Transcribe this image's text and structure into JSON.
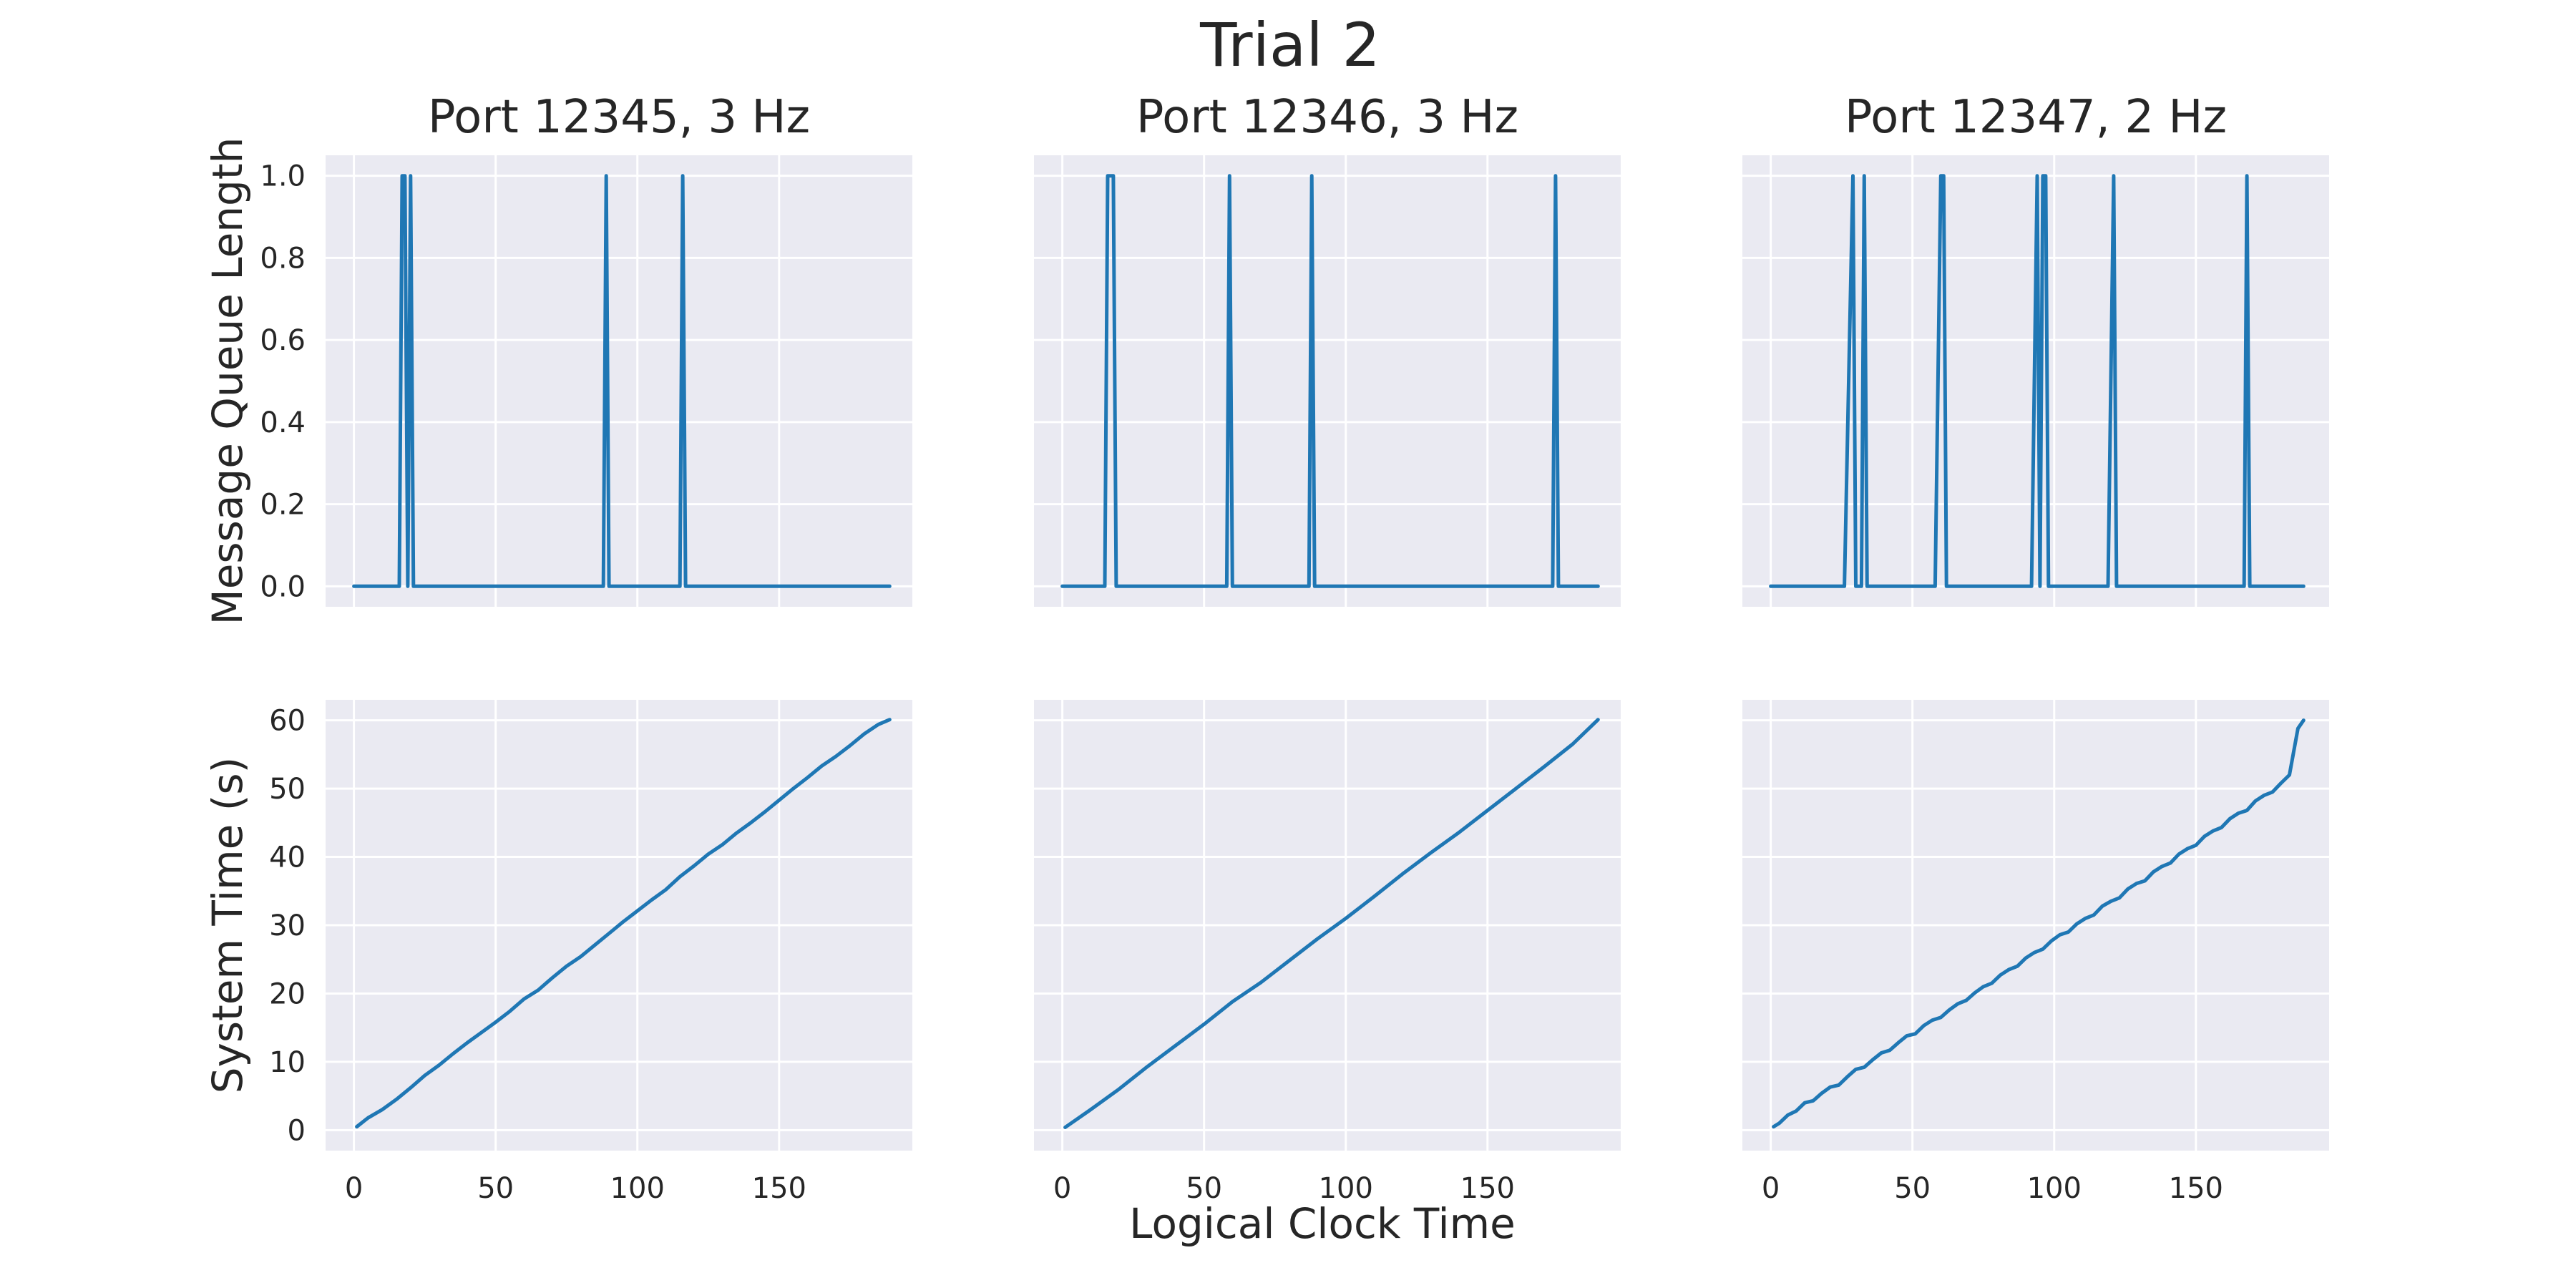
{
  "figure": {
    "title": "Trial 2",
    "shared_xlabel": "Logical Clock Time"
  },
  "chart_data": [
    {
      "type": "line",
      "title": "Port 12345, 3 Hz",
      "xlabel": "",
      "ylabel": "Message Queue Length",
      "xlim": [
        -10,
        197
      ],
      "ylim": [
        -0.05,
        1.05
      ],
      "xticks": [
        0,
        50,
        100,
        150
      ],
      "yticks": [
        0.0,
        0.2,
        0.4,
        0.6,
        0.8,
        1.0
      ],
      "ytick_labels": [
        "0.0",
        "0.2",
        "0.4",
        "0.6",
        "0.8",
        "1.0"
      ],
      "grid": true,
      "line_color": "#1f77b4",
      "series": [
        {
          "x": [
            0,
            16,
            17,
            18,
            19,
            20,
            21,
            88,
            89,
            90,
            115,
            116,
            117,
            189
          ],
          "y": [
            0,
            0,
            1,
            1,
            0,
            1,
            0,
            0,
            1,
            0,
            0,
            1,
            0,
            0
          ]
        }
      ]
    },
    {
      "type": "line",
      "title": "Port 12346, 3 Hz",
      "xlabel": "",
      "ylabel": "",
      "xlim": [
        -10,
        197
      ],
      "ylim": [
        -0.05,
        1.05
      ],
      "xticks": [
        0,
        50,
        100,
        150
      ],
      "yticks": [
        0.0,
        0.2,
        0.4,
        0.6,
        0.8,
        1.0
      ],
      "ytick_labels": [],
      "grid": true,
      "line_color": "#1f77b4",
      "series": [
        {
          "x": [
            0,
            15,
            16,
            18,
            19,
            58,
            59,
            60,
            87,
            88,
            89,
            173,
            174,
            175,
            189
          ],
          "y": [
            0,
            0,
            1,
            1,
            0,
            0,
            1,
            0,
            0,
            1,
            0,
            0,
            1,
            0,
            0
          ]
        }
      ]
    },
    {
      "type": "line",
      "title": "Port 12347, 2 Hz",
      "xlabel": "",
      "ylabel": "",
      "xlim": [
        -10,
        197
      ],
      "ylim": [
        -0.05,
        1.05
      ],
      "xticks": [
        0,
        50,
        100,
        150
      ],
      "yticks": [
        0.0,
        0.2,
        0.4,
        0.6,
        0.8,
        1.0
      ],
      "ytick_labels": [],
      "grid": true,
      "line_color": "#1f77b4",
      "series": [
        {
          "x": [
            0,
            26,
            29,
            30,
            32,
            33,
            34,
            58,
            60,
            61,
            62,
            92,
            94,
            95,
            96,
            97,
            98,
            119,
            121,
            122,
            167,
            168,
            169,
            188
          ],
          "y": [
            0,
            0,
            1,
            0,
            0,
            1,
            0,
            0,
            1,
            1,
            0,
            0,
            1,
            0,
            1,
            1,
            0,
            0,
            1,
            0,
            0,
            1,
            0,
            0
          ]
        }
      ]
    },
    {
      "type": "line",
      "title": "",
      "xlabel": "",
      "ylabel": "System Time (s)",
      "xlim": [
        -10,
        197
      ],
      "ylim": [
        -3,
        63
      ],
      "xticks": [
        0,
        50,
        100,
        150
      ],
      "xtick_labels": [
        "0",
        "50",
        "100",
        "150"
      ],
      "yticks": [
        0,
        10,
        20,
        30,
        40,
        50,
        60
      ],
      "ytick_labels": [
        "0",
        "10",
        "20",
        "30",
        "40",
        "50",
        "60"
      ],
      "grid": true,
      "line_color": "#1f77b4",
      "series": [
        {
          "x": [
            1,
            5,
            10,
            15,
            20,
            25,
            30,
            35,
            40,
            45,
            50,
            55,
            60,
            65,
            70,
            75,
            80,
            85,
            90,
            95,
            100,
            105,
            110,
            115,
            120,
            125,
            130,
            135,
            140,
            145,
            150,
            155,
            160,
            165,
            170,
            175,
            180,
            185,
            189
          ],
          "y": [
            0.5,
            1.8,
            3.0,
            4.5,
            6.2,
            8.0,
            9.5,
            11.2,
            12.8,
            14.3,
            15.8,
            17.4,
            19.2,
            20.5,
            22.3,
            24.0,
            25.4,
            27.1,
            28.8,
            30.5,
            32.1,
            33.7,
            35.2,
            37.1,
            38.7,
            40.4,
            41.8,
            43.5,
            45.0,
            46.6,
            48.3,
            50.0,
            51.6,
            53.3,
            54.7,
            56.3,
            58.0,
            59.4,
            60.1
          ]
        }
      ]
    },
    {
      "type": "line",
      "title": "",
      "xlabel": "",
      "ylabel": "",
      "xlim": [
        -10,
        197
      ],
      "ylim": [
        -3,
        63
      ],
      "xticks": [
        0,
        50,
        100,
        150
      ],
      "xtick_labels": [
        "0",
        "50",
        "100",
        "150"
      ],
      "yticks": [
        0,
        10,
        20,
        30,
        40,
        50,
        60
      ],
      "ytick_labels": [],
      "grid": true,
      "line_color": "#1f77b4",
      "series": [
        {
          "x": [
            1,
            10,
            20,
            30,
            40,
            50,
            60,
            70,
            80,
            90,
            100,
            110,
            120,
            130,
            140,
            150,
            160,
            170,
            180,
            189
          ],
          "y": [
            0.4,
            3.0,
            6.0,
            9.3,
            12.4,
            15.5,
            18.8,
            21.6,
            24.8,
            28.0,
            31.0,
            34.2,
            37.5,
            40.6,
            43.6,
            46.8,
            50.0,
            53.2,
            56.5,
            60.1
          ]
        }
      ]
    },
    {
      "type": "line",
      "title": "",
      "xlabel": "",
      "ylabel": "",
      "xlim": [
        -10,
        197
      ],
      "ylim": [
        -3,
        63
      ],
      "xticks": [
        0,
        50,
        100,
        150
      ],
      "xtick_labels": [
        "0",
        "50",
        "100",
        "150"
      ],
      "yticks": [
        0,
        10,
        20,
        30,
        40,
        50,
        60
      ],
      "ytick_labels": [],
      "grid": true,
      "line_color": "#1f77b4",
      "series": [
        {
          "x": [
            1,
            3,
            6,
            9,
            12,
            15,
            18,
            21,
            24,
            27,
            30,
            33,
            36,
            39,
            42,
            45,
            48,
            51,
            54,
            57,
            60,
            63,
            66,
            69,
            72,
            75,
            78,
            81,
            84,
            87,
            90,
            93,
            96,
            99,
            102,
            105,
            108,
            111,
            114,
            117,
            120,
            123,
            126,
            129,
            132,
            135,
            138,
            141,
            144,
            147,
            150,
            153,
            156,
            159,
            162,
            165,
            168,
            171,
            174,
            177,
            180,
            183,
            186,
            188
          ],
          "y": [
            0.5,
            1.0,
            2.2,
            2.8,
            4.0,
            4.3,
            5.4,
            6.3,
            6.6,
            7.8,
            8.9,
            9.2,
            10.3,
            11.3,
            11.7,
            12.8,
            13.8,
            14.1,
            15.3,
            16.1,
            16.5,
            17.6,
            18.5,
            19.0,
            20.1,
            21.0,
            21.5,
            22.7,
            23.5,
            24.0,
            25.2,
            26.0,
            26.5,
            27.7,
            28.6,
            29.0,
            30.2,
            31.0,
            31.5,
            32.8,
            33.5,
            34.0,
            35.3,
            36.1,
            36.5,
            37.8,
            38.6,
            39.1,
            40.4,
            41.2,
            41.7,
            43.0,
            43.8,
            44.3,
            45.6,
            46.4,
            46.8,
            48.2,
            49.0,
            49.5,
            50.8,
            52.0,
            58.8,
            60.0
          ]
        }
      ]
    }
  ]
}
